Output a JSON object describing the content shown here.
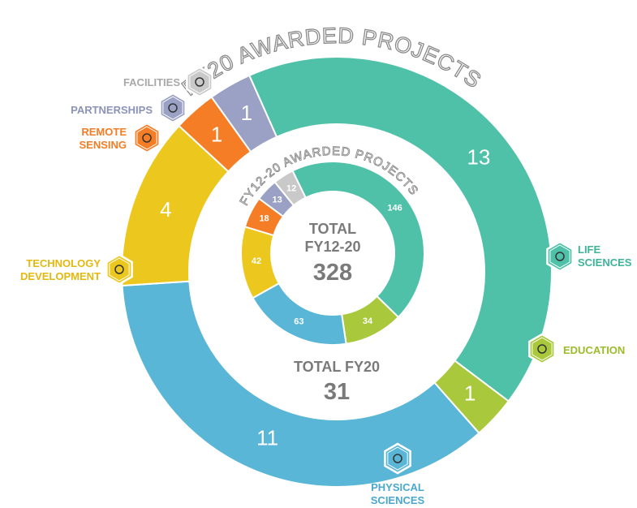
{
  "chart_data": {
    "type": "donut",
    "categories": [
      "LIFE SCIENCES",
      "EDUCATION",
      "PHYSICAL SCIENCES",
      "TECHNOLOGY DEVELOPMENT",
      "REMOTE SENSING",
      "PARTNERSHIPS",
      "FACILITIES"
    ],
    "colors": [
      "#4fc1a9",
      "#a9c83b",
      "#5ab6d6",
      "#ecc81f",
      "#f47d26",
      "#9aa1c4",
      "#c9c9c9"
    ],
    "series": [
      {
        "name": "FY20 AWARDED PROJECTS",
        "values": [
          13,
          1,
          11,
          4,
          1,
          1,
          0
        ],
        "total_label": "TOTAL FY20",
        "total": 31
      },
      {
        "name": "FY12-20 AWARDED PROJECTS",
        "values": [
          146,
          34,
          63,
          42,
          18,
          13,
          12
        ],
        "total_label": [
          "TOTAL",
          "FY12-20"
        ],
        "total": 328
      }
    ]
  }
}
